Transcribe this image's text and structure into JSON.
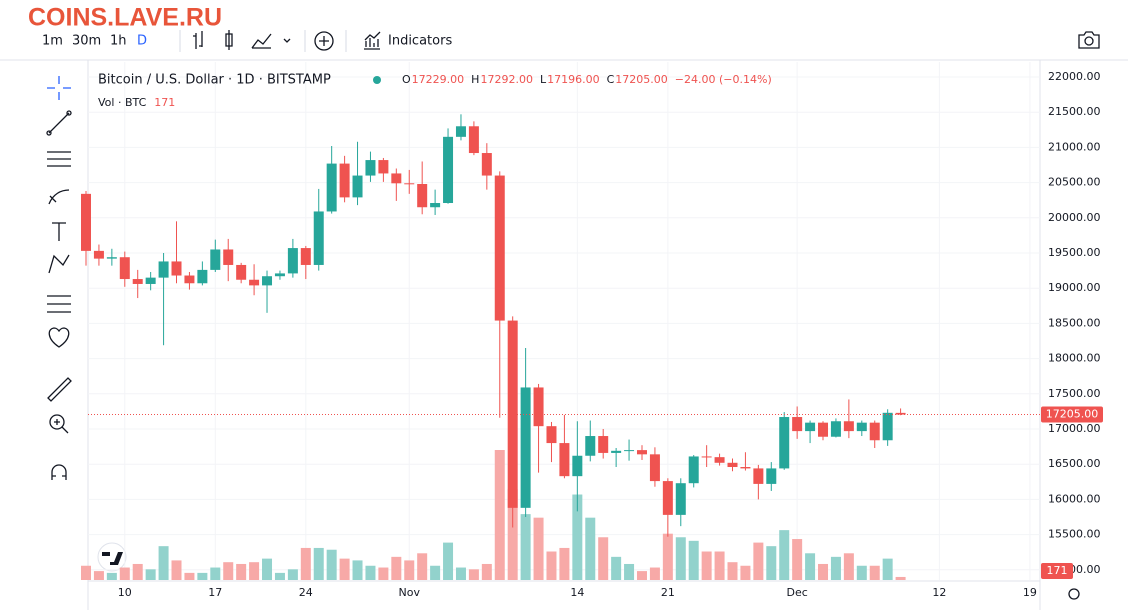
{
  "watermark": "COINS.LAVE.RU",
  "toolbar": {
    "intervals": [
      "1m",
      "30m",
      "1h",
      "D"
    ],
    "indicators": "Indicators"
  },
  "chart_data": {
    "type": "candlestick",
    "title": "Bitcoin / U.S. Dollar · 1D · BITSTAMP",
    "legend": [
      {
        "key": "O",
        "value": "17229.00"
      },
      {
        "key": "H",
        "value": "17292.00"
      },
      {
        "key": "L",
        "value": "17196.00"
      },
      {
        "key": "C",
        "value": "17205.00"
      }
    ],
    "change": "−24.00 (−0.14%)",
    "volume_title": "Vol · BTC",
    "categories": [
      null,
      null,
      null,
      "10",
      null,
      null,
      null,
      null,
      null,
      null,
      "17",
      null,
      null,
      null,
      null,
      null,
      null,
      "24",
      null,
      null,
      null,
      null,
      null,
      null,
      null,
      "Nov",
      null,
      null,
      null,
      null,
      null,
      null,
      null,
      null,
      null,
      null,
      null,
      null,
      "14",
      null,
      null,
      null,
      null,
      null,
      null,
      "21",
      null,
      null,
      null,
      null,
      null,
      null,
      null,
      null,
      null,
      "Dec",
      null,
      null,
      null,
      null,
      null,
      null,
      null,
      null,
      null,
      null,
      "12",
      null,
      null,
      null,
      null,
      null,
      null,
      "19"
    ],
    "open": [
      20340,
      19530,
      19420,
      19440,
      19130,
      19060,
      19150,
      19380,
      19180,
      19070,
      19260,
      19550,
      19330,
      19120,
      19040,
      19170,
      19210,
      19570,
      19330,
      20090,
      20770,
      20290,
      20600,
      20820,
      20630,
      20490,
      20480,
      20150,
      20210,
      21150,
      21300,
      20920,
      20600,
      18540,
      15880,
      17590,
      17040,
      16800,
      16330,
      16620,
      16900,
      16660,
      16690,
      16700,
      16640,
      16260,
      15780,
      16230,
      16610,
      16600,
      16520,
      16460,
      16440,
      16220,
      16440,
      17170,
      16970,
      17090,
      16890,
      17110,
      16970,
      17090,
      16840,
      17229,
      null,
      null,
      null,
      null,
      null,
      null,
      null,
      null,
      null,
      null
    ],
    "high": [
      20380,
      19620,
      19560,
      19520,
      19260,
      19230,
      19500,
      19950,
      19230,
      19380,
      19690,
      19700,
      19360,
      19340,
      19250,
      19250,
      19700,
      19600,
      20410,
      21020,
      20880,
      21080,
      20940,
      20850,
      20700,
      20680,
      20800,
      20400,
      21270,
      21470,
      21370,
      21060,
      20660,
      18600,
      18150,
      17640,
      17100,
      17200,
      17110,
      17120,
      17000,
      16730,
      16850,
      16770,
      16740,
      16300,
      16300,
      16630,
      16770,
      16650,
      16580,
      16670,
      16490,
      16530,
      17240,
      17320,
      17120,
      17110,
      17150,
      17420,
      17120,
      17120,
      17280,
      17292,
      null,
      null,
      null,
      null,
      null,
      null,
      null,
      null,
      null,
      null
    ],
    "low": [
      19320,
      19320,
      19320,
      19020,
      18860,
      18970,
      18190,
      19070,
      18980,
      19040,
      19230,
      19100,
      19070,
      18900,
      18650,
      19120,
      19150,
      19130,
      19250,
      20060,
      20220,
      20180,
      20510,
      20510,
      20240,
      20340,
      20050,
      20040,
      20200,
      21100,
      20890,
      20400,
      17160,
      15600,
      15750,
      16380,
      16530,
      16300,
      15830,
      16540,
      16580,
      16460,
      16550,
      16560,
      16180,
      15470,
      15620,
      16170,
      16460,
      16480,
      16400,
      16410,
      16000,
      16120,
      16420,
      16860,
      16800,
      16840,
      16880,
      16870,
      16900,
      16730,
      16760,
      17196,
      null,
      null,
      null,
      null,
      null,
      null,
      null,
      null,
      null,
      null
    ],
    "close": [
      19530,
      19420,
      19440,
      19130,
      19060,
      19150,
      19380,
      19180,
      19070,
      19260,
      19550,
      19330,
      19120,
      19040,
      19170,
      19210,
      19570,
      19330,
      20090,
      20770,
      20290,
      20600,
      20820,
      20630,
      20490,
      20480,
      20150,
      20210,
      21150,
      21300,
      20920,
      20600,
      18540,
      15880,
      17590,
      17040,
      16800,
      16330,
      16620,
      16900,
      16660,
      16690,
      16700,
      16640,
      16260,
      15780,
      16230,
      16610,
      16600,
      16520,
      16460,
      16440,
      16220,
      16440,
      17170,
      16970,
      17090,
      16890,
      17110,
      16970,
      17090,
      16840,
      17230,
      17205,
      null,
      null,
      null,
      null,
      null,
      null,
      null,
      null,
      null,
      null
    ],
    "volume": [
      800,
      500,
      400,
      700,
      900,
      600,
      1900,
      1100,
      400,
      400,
      700,
      1000,
      900,
      1000,
      1200,
      400,
      600,
      1800,
      1800,
      1700,
      1200,
      1100,
      800,
      700,
      1300,
      1100,
      1500,
      800,
      2100,
      700,
      600,
      900,
      7300,
      5100,
      3700,
      3500,
      1600,
      1800,
      4800,
      3500,
      2400,
      1300,
      900,
      500,
      700,
      2600,
      2400,
      2200,
      1600,
      1600,
      1000,
      800,
      2100,
      1900,
      2800,
      2300,
      1500,
      900,
      1300,
      1500,
      800,
      800,
      1200,
      171,
      null,
      null,
      null,
      null,
      null,
      null,
      null,
      null,
      null,
      null
    ],
    "up_color": "#26a69a",
    "down_color": "#ef5350",
    "last_label": "17205.00",
    "ylim": [
      14855,
      22213
    ],
    "yticks": [
      {
        "value": 15000,
        "label": "15000.00"
      },
      {
        "value": 15500,
        "label": "15500.00"
      },
      {
        "value": 16000,
        "label": "16000.00"
      },
      {
        "value": 16500,
        "label": "16500.00"
      },
      {
        "value": 17000,
        "label": "17000.00"
      },
      {
        "value": 17500,
        "label": "17500.00"
      },
      {
        "value": 18000,
        "label": "18000.00"
      },
      {
        "value": 18500,
        "label": "18500.00"
      },
      {
        "value": 19000,
        "label": "19000.00"
      },
      {
        "value": 19500,
        "label": "19500.00"
      },
      {
        "value": 20000,
        "label": "20000.00"
      },
      {
        "value": 20500,
        "label": "20500.00"
      },
      {
        "value": 21000,
        "label": "21000.00"
      },
      {
        "value": 21500,
        "label": "21500.00"
      },
      {
        "value": 22000,
        "label": "22000.00"
      }
    ],
    "grid": true
  }
}
